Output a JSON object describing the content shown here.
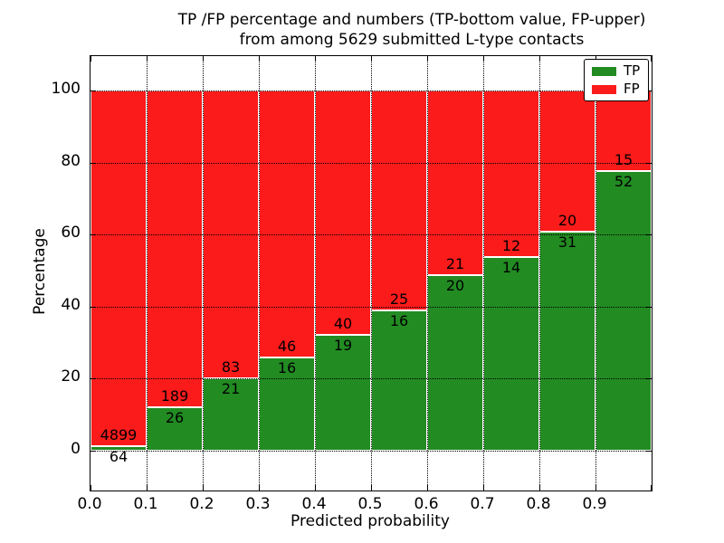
{
  "figure": {
    "title_line1": "TP /FP percentage and numbers (TP-bottom value, FP-upper)",
    "title_line2": "from among 5629 submitted L-type contacts"
  },
  "chart_data": {
    "type": "bar",
    "stacked": true,
    "normalized_to_percent": true,
    "title": "TP /FP percentage and numbers (TP-bottom value, FP-upper) from among 5629 submitted L-type contacts",
    "xlabel": "Predicted probability",
    "ylabel": "Percentage",
    "total_contacts": 5629,
    "bin_edges": [
      0.0,
      0.1,
      0.2,
      0.3,
      0.4,
      0.5,
      0.6,
      0.7,
      0.8,
      0.9,
      1.0
    ],
    "xtick_labels": [
      "0.0",
      "0.1",
      "0.2",
      "0.3",
      "0.4",
      "0.5",
      "0.6",
      "0.7",
      "0.8",
      "0.9"
    ],
    "yticks": [
      0,
      20,
      40,
      60,
      80,
      100
    ],
    "ytick_labels": [
      "0",
      "20",
      "40",
      "60",
      "80",
      "100"
    ],
    "ylim_data": [
      0,
      100
    ],
    "grid": "dotted black lines at all ticks, drawn on top of bars",
    "legend_position": "upper right",
    "bar_edge_color": "#ffffff",
    "series": [
      {
        "name": "TP",
        "color": "#228b22",
        "counts": [
          64,
          26,
          21,
          16,
          19,
          16,
          20,
          14,
          31,
          52
        ]
      },
      {
        "name": "FP",
        "color": "#fb1b1b",
        "counts": [
          4899,
          189,
          83,
          46,
          40,
          25,
          21,
          12,
          20,
          15
        ]
      }
    ],
    "tp_percent_of_bin": [
      1.29,
      12.09,
      20.19,
      25.81,
      32.2,
      39.02,
      48.78,
      53.85,
      60.78,
      77.61
    ],
    "fp_percent_of_bin": [
      98.71,
      87.91,
      79.81,
      74.19,
      67.8,
      60.98,
      51.22,
      46.15,
      39.22,
      22.39
    ],
    "annotation_note": "TP count printed just below each green/red boundary, FP count just above it"
  }
}
